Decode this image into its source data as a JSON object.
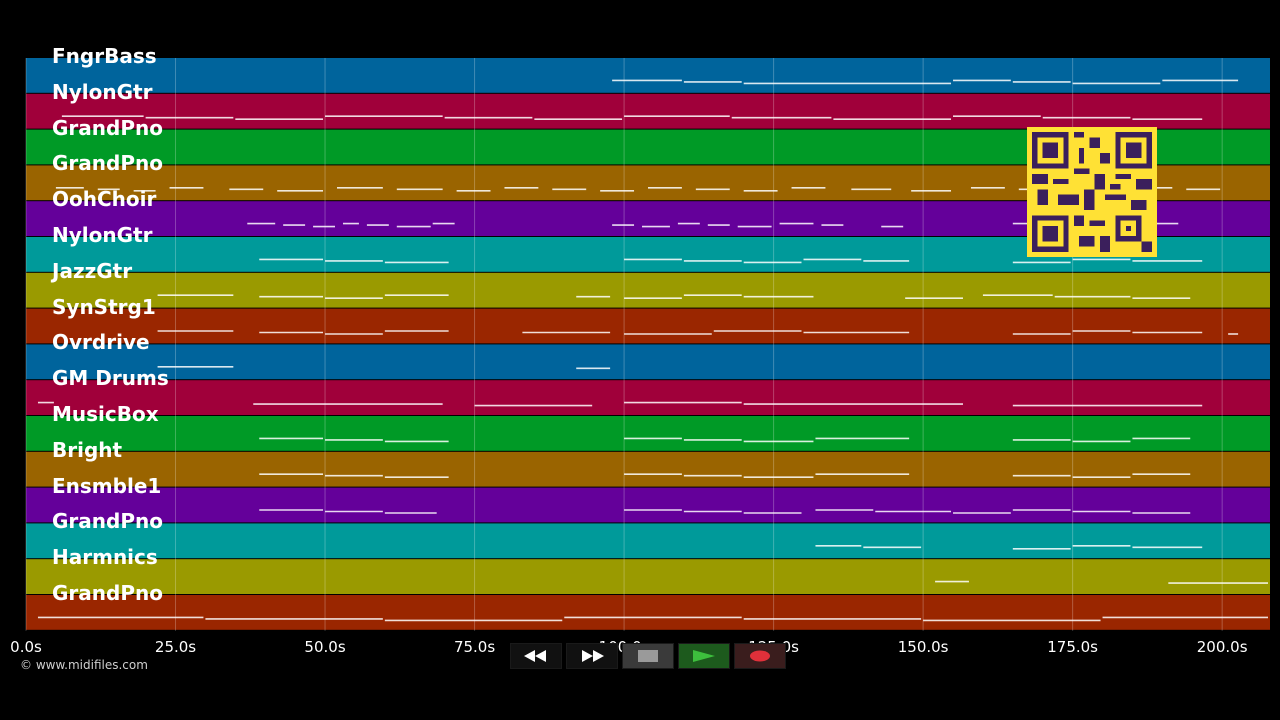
{
  "tracks": [
    {
      "name": "FngrBass",
      "color": "#00649c"
    },
    {
      "name": "NylonGtr",
      "color": "#a0003a"
    },
    {
      "name": "GrandPno",
      "color": "#009a26"
    },
    {
      "name": "GrandPno",
      "color": "#9a6400"
    },
    {
      "name": "OohChoir",
      "color": "#64009a"
    },
    {
      "name": "NylonGtr",
      "color": "#009a9a"
    },
    {
      "name": "JazzGtr",
      "color": "#9a9a00"
    },
    {
      "name": "SynStrg1",
      "color": "#9a2600"
    },
    {
      "name": "Ovrdrive",
      "color": "#00649c"
    },
    {
      "name": "GM Drums",
      "color": "#a0003a"
    },
    {
      "name": "MusicBox",
      "color": "#009a26"
    },
    {
      "name": "Bright",
      "color": "#9a6400"
    },
    {
      "name": "Ensmble1",
      "color": "#64009a"
    },
    {
      "name": "GrandPno",
      "color": "#009a9a"
    },
    {
      "name": "Harmnics",
      "color": "#9a9a00"
    },
    {
      "name": "GrandPno",
      "color": "#9a2600"
    }
  ],
  "time_axis": {
    "ticks": [
      "0.0s",
      "25.0s",
      "50.0s",
      "75.0s",
      "100.0s",
      "125.0s",
      "150.0s",
      "175.0s",
      "200.0s"
    ],
    "min": 0,
    "max": 208
  },
  "note_segments": [
    {
      "track": 0,
      "segs": [
        [
          98,
          110
        ],
        [
          110,
          120
        ],
        [
          120,
          155
        ],
        [
          155,
          165
        ],
        [
          165,
          175
        ],
        [
          175,
          190
        ],
        [
          190,
          203
        ]
      ]
    },
    {
      "track": 1,
      "segs": [
        [
          6,
          20
        ],
        [
          20,
          35
        ],
        [
          35,
          50
        ],
        [
          50,
          70
        ],
        [
          70,
          85
        ],
        [
          85,
          100
        ],
        [
          100,
          118
        ],
        [
          118,
          135
        ],
        [
          135,
          155
        ],
        [
          155,
          170
        ],
        [
          170,
          185
        ],
        [
          185,
          197
        ]
      ]
    },
    {
      "track": 3,
      "segs": [
        [
          5,
          10
        ],
        [
          12,
          16
        ],
        [
          18,
          22
        ],
        [
          24,
          30
        ],
        [
          34,
          40
        ],
        [
          42,
          50
        ],
        [
          52,
          60
        ],
        [
          62,
          70
        ],
        [
          72,
          78
        ],
        [
          80,
          86
        ],
        [
          88,
          94
        ],
        [
          96,
          102
        ],
        [
          104,
          110
        ],
        [
          112,
          118
        ],
        [
          120,
          126
        ],
        [
          128,
          134
        ],
        [
          138,
          145
        ],
        [
          148,
          155
        ],
        [
          158,
          164
        ],
        [
          166,
          172
        ],
        [
          175,
          182
        ],
        [
          185,
          192
        ],
        [
          194,
          200
        ]
      ]
    },
    {
      "track": 4,
      "segs": [
        [
          37,
          42
        ],
        [
          43,
          47
        ],
        [
          48,
          52
        ],
        [
          53,
          56
        ],
        [
          57,
          61
        ],
        [
          62,
          68
        ],
        [
          68,
          72
        ],
        [
          98,
          102
        ],
        [
          103,
          108
        ],
        [
          109,
          113
        ],
        [
          114,
          118
        ],
        [
          119,
          125
        ],
        [
          126,
          132
        ],
        [
          133,
          137
        ],
        [
          143,
          147
        ],
        [
          165,
          170
        ],
        [
          172,
          180
        ],
        [
          180,
          186
        ],
        [
          186,
          193
        ]
      ]
    },
    {
      "track": 5,
      "segs": [
        [
          39,
          50
        ],
        [
          50,
          60
        ],
        [
          60,
          71
        ],
        [
          100,
          110
        ],
        [
          110,
          120
        ],
        [
          120,
          130
        ],
        [
          130,
          140
        ],
        [
          140,
          148
        ],
        [
          165,
          175
        ],
        [
          175,
          185
        ],
        [
          185,
          197
        ]
      ]
    },
    {
      "track": 6,
      "segs": [
        [
          22,
          35
        ],
        [
          39,
          50
        ],
        [
          50,
          60
        ],
        [
          60,
          71
        ],
        [
          92,
          98
        ],
        [
          100,
          110
        ],
        [
          110,
          120
        ],
        [
          120,
          132
        ],
        [
          147,
          157
        ],
        [
          160,
          172
        ],
        [
          172,
          185
        ],
        [
          185,
          195
        ]
      ]
    },
    {
      "track": 7,
      "segs": [
        [
          22,
          35
        ],
        [
          39,
          50
        ],
        [
          50,
          60
        ],
        [
          60,
          71
        ],
        [
          83,
          98
        ],
        [
          100,
          115
        ],
        [
          115,
          130
        ],
        [
          130,
          148
        ],
        [
          165,
          175
        ],
        [
          175,
          185
        ],
        [
          185,
          197
        ],
        [
          201,
          203
        ]
      ]
    },
    {
      "track": 8,
      "segs": [
        [
          22,
          35
        ],
        [
          92,
          98
        ]
      ]
    },
    {
      "track": 9,
      "segs": [
        [
          2,
          5
        ],
        [
          38,
          70
        ],
        [
          75,
          95
        ],
        [
          100,
          120
        ],
        [
          120,
          157
        ],
        [
          165,
          197
        ]
      ]
    },
    {
      "track": 10,
      "segs": [
        [
          39,
          50
        ],
        [
          50,
          60
        ],
        [
          60,
          71
        ],
        [
          100,
          110
        ],
        [
          110,
          120
        ],
        [
          120,
          132
        ],
        [
          132,
          148
        ],
        [
          165,
          175
        ],
        [
          175,
          185
        ],
        [
          185,
          195
        ]
      ]
    },
    {
      "track": 11,
      "segs": [
        [
          39,
          50
        ],
        [
          50,
          60
        ],
        [
          60,
          71
        ],
        [
          100,
          110
        ],
        [
          110,
          120
        ],
        [
          120,
          132
        ],
        [
          132,
          148
        ],
        [
          165,
          175
        ],
        [
          175,
          185
        ],
        [
          185,
          195
        ]
      ]
    },
    {
      "track": 12,
      "segs": [
        [
          39,
          50
        ],
        [
          50,
          60
        ],
        [
          60,
          69
        ],
        [
          100,
          110
        ],
        [
          110,
          120
        ],
        [
          120,
          130
        ],
        [
          132,
          142
        ],
        [
          142,
          155
        ],
        [
          155,
          165
        ],
        [
          165,
          175
        ],
        [
          175,
          185
        ],
        [
          185,
          195
        ]
      ]
    },
    {
      "track": 13,
      "segs": [
        [
          132,
          140
        ],
        [
          140,
          150
        ],
        [
          165,
          175
        ],
        [
          175,
          185
        ],
        [
          185,
          197
        ]
      ]
    },
    {
      "track": 14,
      "segs": [
        [
          152,
          158
        ],
        [
          191,
          208
        ]
      ]
    },
    {
      "track": 15,
      "segs": [
        [
          2,
          30
        ],
        [
          30,
          60
        ],
        [
          60,
          90
        ],
        [
          90,
          120
        ],
        [
          120,
          150
        ],
        [
          150,
          180
        ],
        [
          180,
          208
        ]
      ]
    }
  ],
  "copyright": "© www.midifiles.com",
  "controls": {
    "rewind": "rewind",
    "forward": "fast-forward",
    "stop": "stop",
    "play": "play",
    "record": "record"
  }
}
